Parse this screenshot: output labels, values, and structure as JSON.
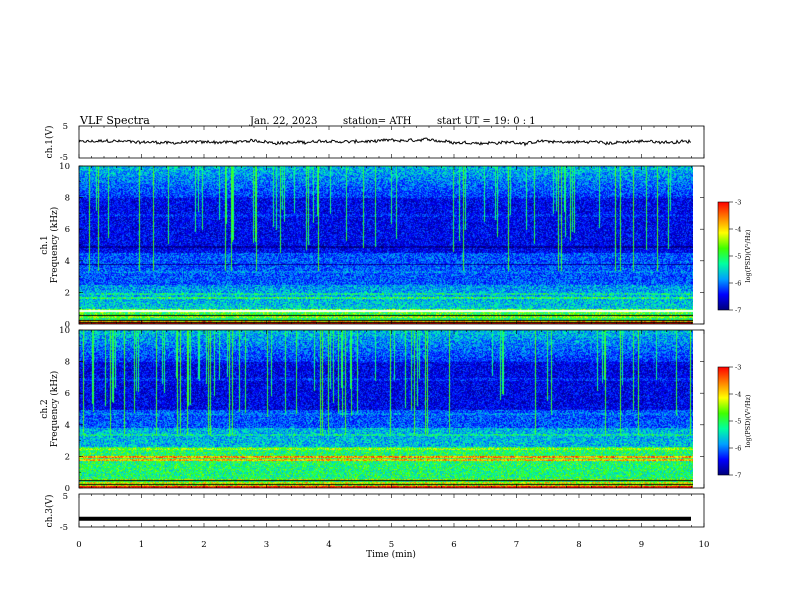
{
  "header": {
    "title": "VLF  Spectra",
    "date": "Jan. 22, 2023",
    "station": "station= ATH",
    "start": "start  UT  =   19: 0  : 1"
  },
  "chart_data": [
    {
      "id": "ch1-waveform",
      "type": "line",
      "ylabel": "ch.1(V)",
      "ylim": [
        -5,
        5
      ],
      "yticks": [
        "5",
        "-5"
      ],
      "xlim": [
        0,
        10
      ],
      "level": 0.0,
      "x_end": 9.8
    },
    {
      "id": "ch1-spectrogram",
      "type": "heatmap",
      "ylabel_top": "ch.1",
      "ylabel": "Frequency (kHz)",
      "ylim": [
        0,
        10
      ],
      "yticks": [
        "0",
        "2",
        "4",
        "6",
        "8",
        "10"
      ],
      "xlim": [
        0,
        10
      ],
      "x_end": 9.8,
      "colorbar": {
        "label": "log(PSD)(V²/Hz)",
        "range": [
          -7,
          -3
        ],
        "ticks": [
          "-3",
          "-4",
          "-5",
          "-6",
          "-7"
        ]
      }
    },
    {
      "id": "ch2-spectrogram",
      "type": "heatmap",
      "ylabel_top": "ch.2",
      "ylabel": "Frequency (kHz)",
      "ylim": [
        0,
        10
      ],
      "yticks": [
        "0",
        "2",
        "4",
        "6",
        "8",
        "10"
      ],
      "xlim": [
        0,
        10
      ],
      "x_end": 9.8,
      "colorbar": {
        "label": "log(PSD)(V²/Hz)",
        "range": [
          -7,
          -3
        ],
        "ticks": [
          "-3",
          "-4",
          "-5",
          "-6",
          "-7"
        ]
      }
    },
    {
      "id": "ch3-waveform",
      "type": "line",
      "ylabel": "ch.3(V)",
      "ylim": [
        -5,
        5
      ],
      "yticks": [
        "5",
        "-5"
      ],
      "xlim": [
        0,
        10
      ],
      "level": -2.5,
      "x_end": 9.8
    }
  ],
  "xaxis": {
    "label": "Time  (min)",
    "ticks": [
      "0",
      "1",
      "2",
      "3",
      "4",
      "5",
      "6",
      "7",
      "8",
      "9",
      "10"
    ]
  },
  "colors": {
    "colormap": [
      "#00007a",
      "#0000ff",
      "#00a0ff",
      "#00ffa0",
      "#40ff00",
      "#ffff00",
      "#ff8000",
      "#ff0000",
      "#ffffff"
    ]
  }
}
